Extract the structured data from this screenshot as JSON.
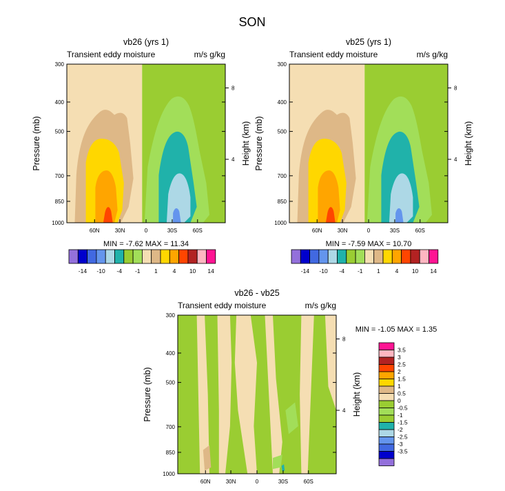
{
  "page_title": "SON",
  "colors": {
    "top": [
      "#9370db",
      "#0000cd",
      "#4169e1",
      "#6495ed",
      "#add8e6",
      "#20b2aa",
      "#9acd32",
      "#a2de59",
      "#f5deb3",
      "#deb887",
      "#ffd700",
      "#ffa500",
      "#ff4500",
      "#b22222",
      "#ffb6c1",
      "#ff1493"
    ],
    "diff": [
      "#9370db",
      "#0000cd",
      "#4169e1",
      "#6495ed",
      "#add8e6",
      "#20b2aa",
      "#9acd32",
      "#a2de59",
      "#9acd32",
      "#f5deb3",
      "#deb887",
      "#ffd700",
      "#ffa500",
      "#ff4500",
      "#b22222",
      "#ffb6c1",
      "#ff1493"
    ]
  },
  "chart_data": [
    {
      "type": "heatmap",
      "title": "vb26 (yrs 1)",
      "left_label": "Transient eddy moisture",
      "right_label": "m/s g/kg",
      "xlabel": "",
      "ylabel": "Pressure (mb)",
      "ylabel_right": "Height (km)",
      "x_ticks": [
        "60N",
        "30N",
        "0",
        "30S",
        "60S"
      ],
      "y_ticks": [
        "300",
        "400",
        "500",
        "700",
        "850",
        "1000"
      ],
      "height_ticks": [
        "8",
        "4"
      ],
      "stats": "MIN =  -7.62   MAX =  11.34",
      "levels": [
        "-14",
        "-10",
        "-4",
        "-1",
        "1",
        "4",
        "10",
        "14"
      ]
    },
    {
      "type": "heatmap",
      "title": "vb25 (yrs 1)",
      "left_label": "Transient eddy moisture",
      "right_label": "m/s g/kg",
      "xlabel": "",
      "ylabel": "Pressure (mb)",
      "ylabel_right": "Height (km)",
      "x_ticks": [
        "60N",
        "30N",
        "0",
        "30S",
        "60S"
      ],
      "y_ticks": [
        "300",
        "400",
        "500",
        "700",
        "850",
        "1000"
      ],
      "height_ticks": [
        "8",
        "4"
      ],
      "stats": "MIN =  -7.59   MAX =  10.70",
      "levels": [
        "-14",
        "-10",
        "-4",
        "-1",
        "1",
        "4",
        "10",
        "14"
      ]
    },
    {
      "type": "heatmap",
      "title": "vb26 - vb25",
      "left_label": "Transient eddy moisture",
      "right_label": "m/s g/kg",
      "xlabel": "",
      "ylabel": "Pressure (mb)",
      "ylabel_right": "Height (km)",
      "x_ticks": [
        "60N",
        "30N",
        "0",
        "30S",
        "60S"
      ],
      "y_ticks": [
        "300",
        "400",
        "500",
        "700",
        "850",
        "1000"
      ],
      "height_ticks": [
        "8",
        "4"
      ],
      "stats": "MIN =  -1.05   MAX =   1.35",
      "levels": [
        "3.5",
        "3",
        "2.5",
        "2",
        "1.5",
        "1",
        "0.5",
        "0",
        "-0.5",
        "-1",
        "-1.5",
        "-2",
        "-2.5",
        "-3",
        "-3.5"
      ]
    }
  ]
}
